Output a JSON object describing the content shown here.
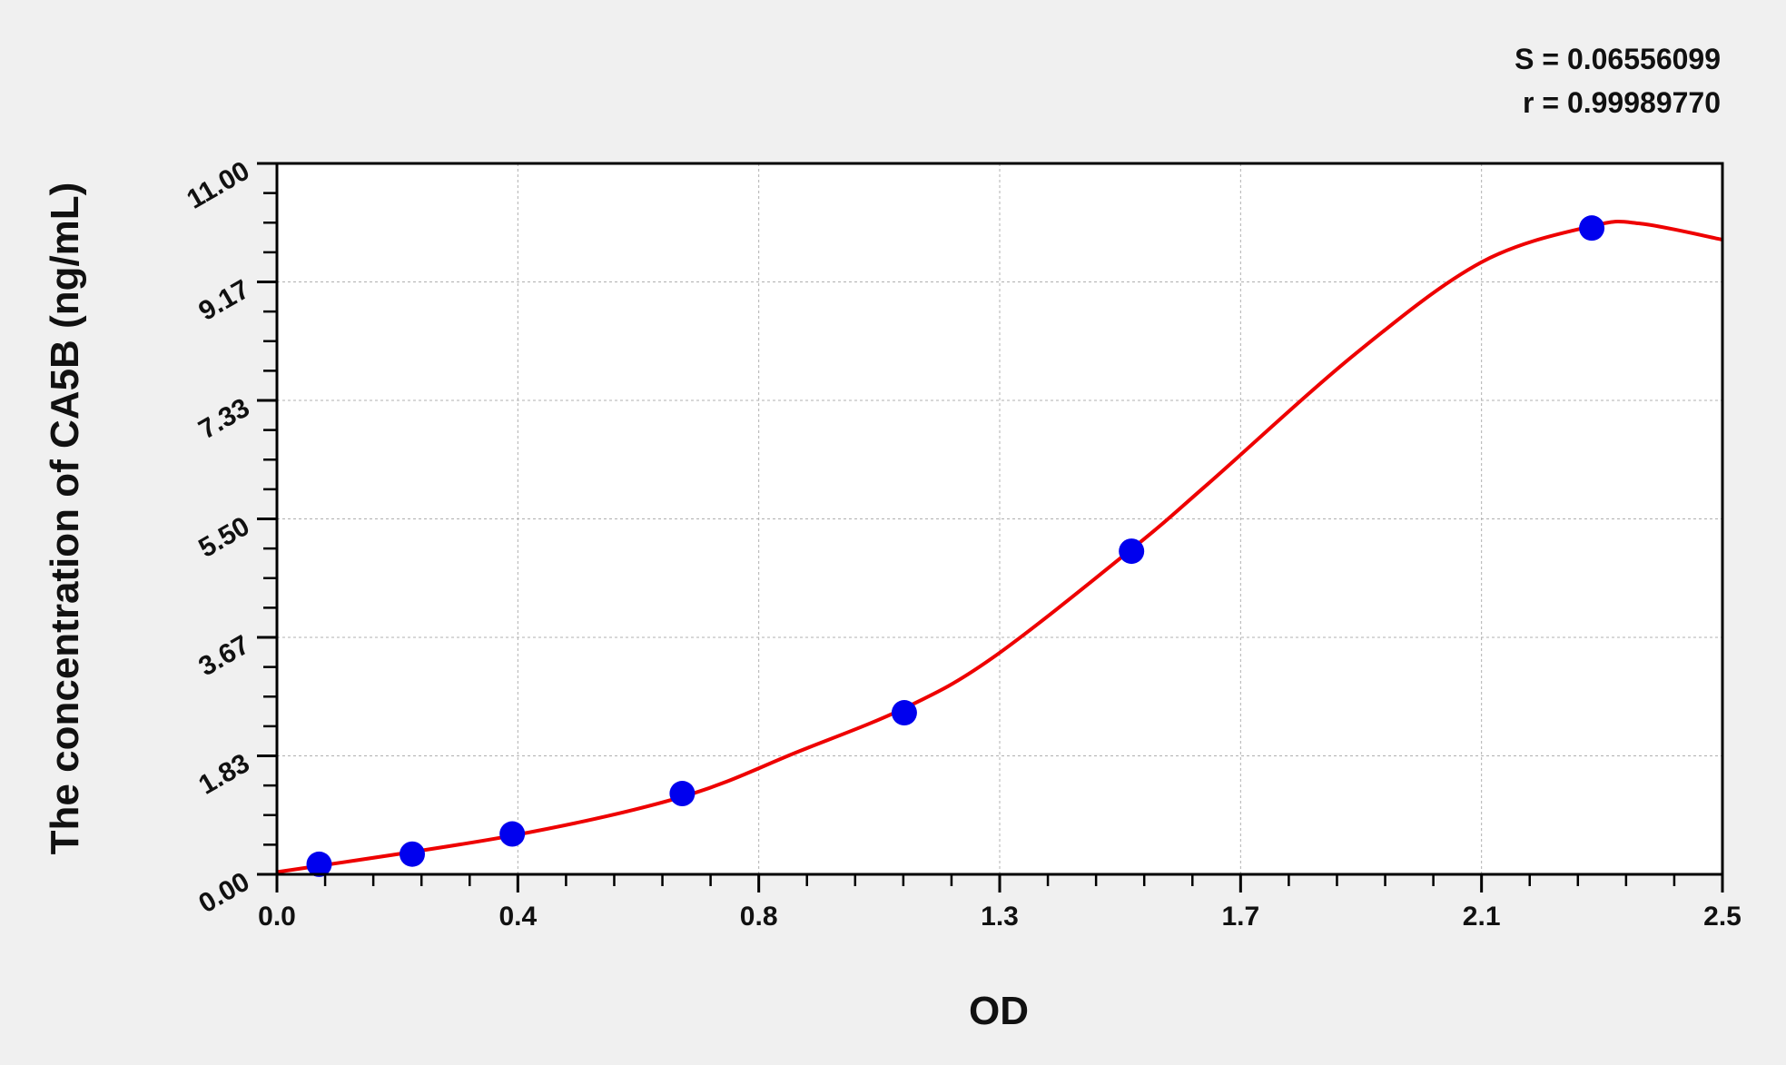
{
  "chart_data": {
    "type": "scatter",
    "xlabel": "OD",
    "ylabel": "The concentration of CA5B (ng/mL)",
    "xlim": [
      0,
      2.5
    ],
    "ylim": [
      0,
      11
    ],
    "x_ticks": [
      "0.0",
      "0.4",
      "0.8",
      "1.3",
      "1.7",
      "2.1",
      "2.5"
    ],
    "y_ticks": [
      "0.00",
      "1.83",
      "3.67",
      "5.50",
      "7.33",
      "9.17",
      "11.00"
    ],
    "grid": true,
    "stats": {
      "s": "S = 0.06556099",
      "r": "r = 0.99989770"
    },
    "colors": {
      "points": "#0000ee",
      "curve": "#ee0000",
      "plot_bg": "#ffffff",
      "page_bg": "#f0f0f0"
    },
    "points": [
      {
        "x": 0.073,
        "y": 0.156
      },
      {
        "x": 0.234,
        "y": 0.313
      },
      {
        "x": 0.407,
        "y": 0.625
      },
      {
        "x": 0.701,
        "y": 1.25
      },
      {
        "x": 1.085,
        "y": 2.5
      },
      {
        "x": 1.478,
        "y": 5.0
      },
      {
        "x": 2.274,
        "y": 10.0
      }
    ],
    "fit_curve": [
      [
        0,
        0.035
      ],
      [
        0.407,
        0.6
      ],
      [
        0.701,
        1.2
      ],
      [
        0.902,
        1.9
      ],
      [
        1.085,
        2.57
      ],
      [
        1.236,
        3.34
      ],
      [
        1.478,
        5.03
      ],
      [
        1.61,
        6.04
      ],
      [
        1.866,
        8.06
      ],
      [
        2.083,
        9.47
      ],
      [
        2.274,
        10.03
      ],
      [
        2.358,
        10.07
      ],
      [
        2.5,
        9.82
      ]
    ]
  }
}
